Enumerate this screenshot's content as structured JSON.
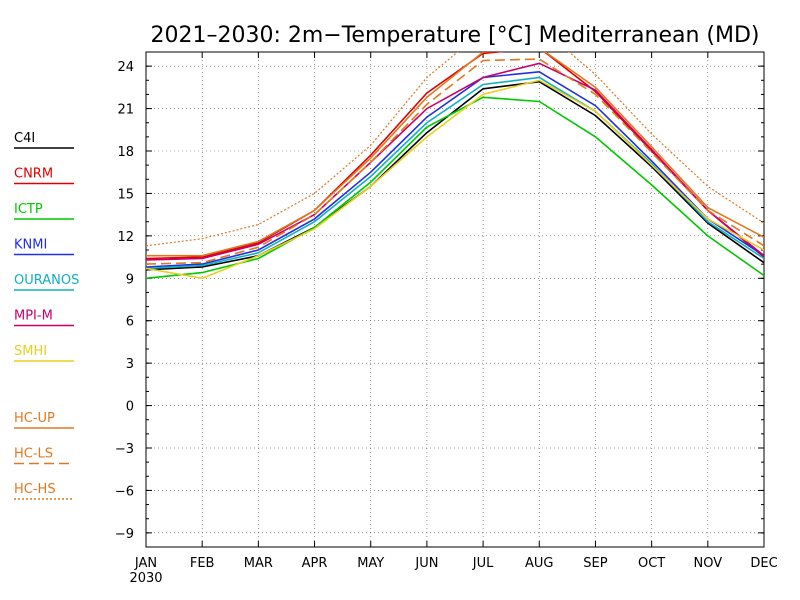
{
  "chart_data": {
    "type": "line",
    "title": "2021–2030: 2m−Temperature [°C] Mediterranean (MD)",
    "year_label": "2030",
    "categories": [
      "JAN",
      "FEB",
      "MAR",
      "APR",
      "MAY",
      "JUN",
      "JUL",
      "AUG",
      "SEP",
      "OCT",
      "NOV",
      "DEC"
    ],
    "ylim": [
      -10,
      25
    ],
    "yticks": [
      -9,
      -6,
      -3,
      0,
      3,
      6,
      9,
      12,
      15,
      18,
      21,
      24
    ],
    "ytick_labels": [
      "−9",
      "−6",
      "−3",
      "0",
      "3",
      "6",
      "9",
      "12",
      "15",
      "18",
      "21",
      "24"
    ],
    "grid": true,
    "legend_position": "left",
    "series": [
      {
        "name": "C4I",
        "color": "#000000",
        "dash": "solid",
        "values": [
          9.6,
          9.8,
          10.6,
          12.6,
          15.5,
          19.3,
          22.4,
          22.9,
          20.5,
          16.9,
          12.9,
          10.1
        ]
      },
      {
        "name": "CNRM",
        "color": "#e00000",
        "dash": "solid",
        "values": [
          10.4,
          10.5,
          11.5,
          13.8,
          17.7,
          22.1,
          24.9,
          25.3,
          22.2,
          18.0,
          13.8,
          10.5
        ]
      },
      {
        "name": "ICTP",
        "color": "#00c800",
        "dash": "solid",
        "values": [
          9.0,
          9.4,
          10.4,
          12.6,
          15.8,
          19.7,
          21.8,
          21.5,
          19.0,
          15.6,
          12.0,
          9.2
        ]
      },
      {
        "name": "KNMI",
        "color": "#2030e0",
        "dash": "solid",
        "values": [
          9.8,
          10.0,
          11.0,
          13.2,
          16.5,
          20.4,
          23.2,
          23.6,
          21.2,
          17.3,
          13.2,
          10.6
        ]
      },
      {
        "name": "OURANOS",
        "color": "#10b0c0",
        "dash": "solid",
        "values": [
          9.7,
          9.9,
          10.8,
          13.0,
          16.2,
          20.0,
          22.7,
          23.2,
          20.8,
          17.1,
          13.0,
          10.4
        ]
      },
      {
        "name": "MPI-M",
        "color": "#c8006e",
        "dash": "solid",
        "values": [
          10.3,
          10.4,
          11.4,
          13.5,
          17.2,
          21.0,
          23.2,
          24.2,
          22.3,
          18.1,
          13.8,
          10.6
        ]
      },
      {
        "name": "SMHI",
        "color": "#e8d020",
        "dash": "solid",
        "values": [
          9.7,
          9.0,
          10.6,
          12.5,
          15.5,
          19.0,
          22.0,
          23.0,
          20.8,
          17.0,
          13.2,
          11.0
        ]
      },
      {
        "name": "HC-UP",
        "color": "#e07820",
        "dash": "solid",
        "values": [
          10.6,
          10.6,
          11.6,
          13.8,
          17.5,
          21.8,
          25.0,
          25.3,
          22.5,
          18.3,
          14.0,
          11.9
        ]
      },
      {
        "name": "HC-LS",
        "color": "#e07820",
        "dash": "dashed",
        "values": [
          10.0,
          10.1,
          11.2,
          13.5,
          17.2,
          21.3,
          24.4,
          24.5,
          22.0,
          17.9,
          13.8,
          11.3
        ]
      },
      {
        "name": "HC-HS",
        "color": "#e07820",
        "dash": "dotted",
        "values": [
          11.3,
          11.8,
          12.8,
          15.0,
          18.4,
          23.2,
          26.5,
          26.8,
          23.4,
          19.2,
          15.5,
          12.9
        ]
      }
    ]
  }
}
